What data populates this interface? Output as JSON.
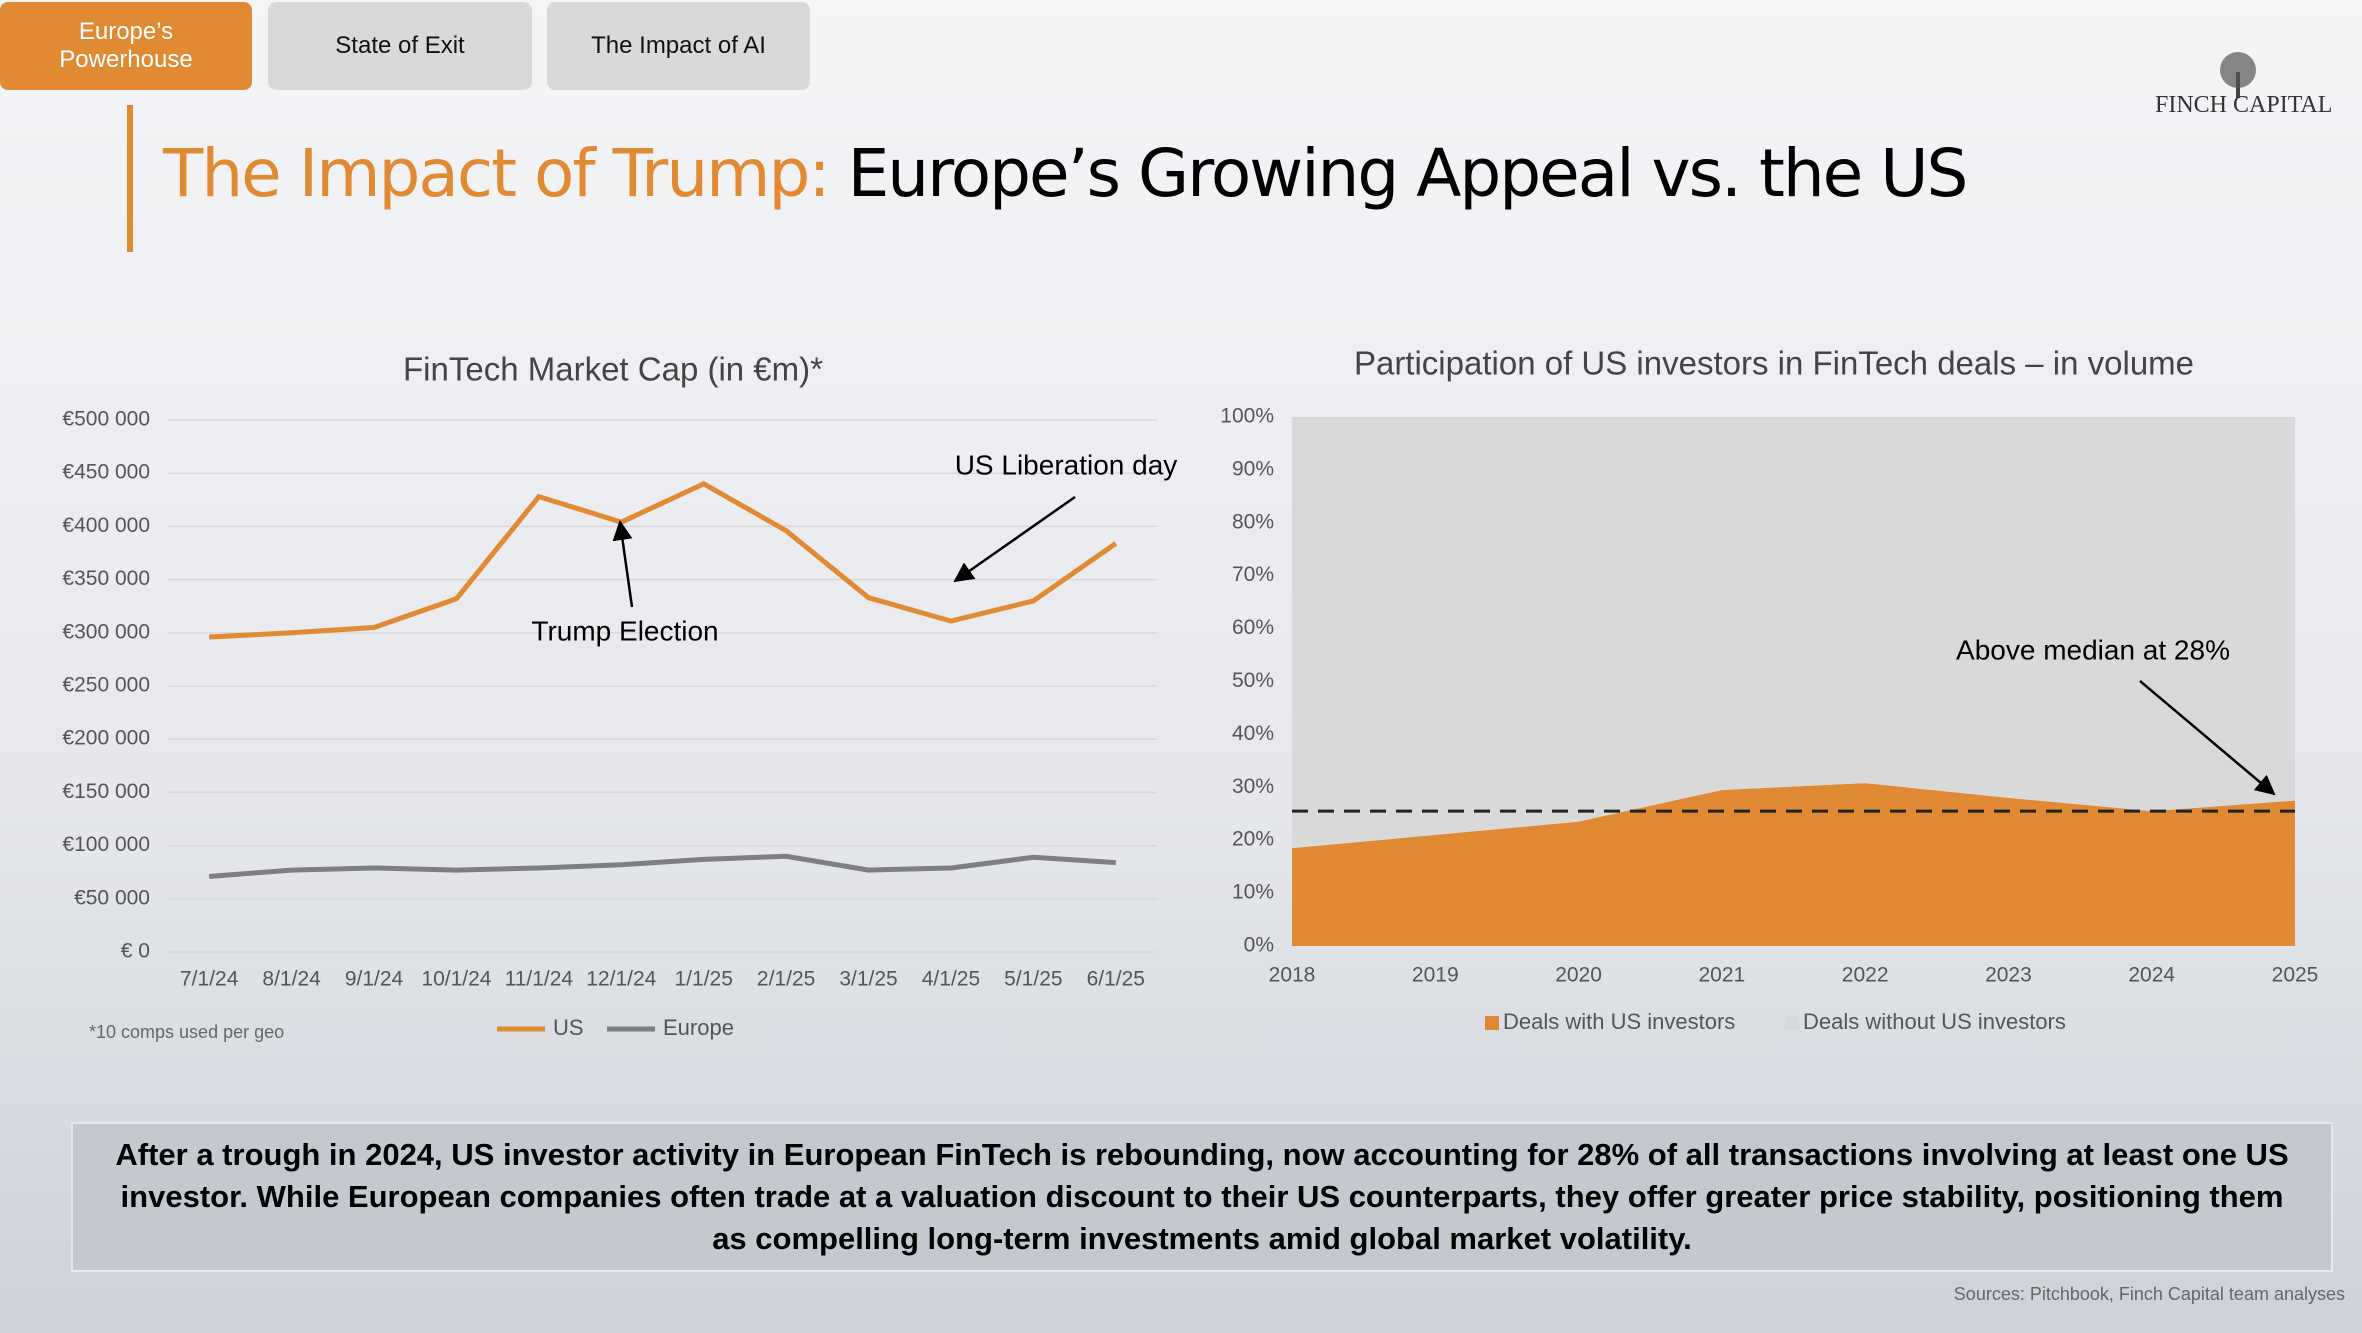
{
  "tabs": [
    "Europe’s Powerhouse",
    "State of Exit",
    "The Impact of AI"
  ],
  "logo": "FINCH CAPITAL",
  "title": {
    "highlight": "The Impact of Trump:",
    "main": "Europe’s Growing Appeal vs. the US"
  },
  "chart_data": [
    {
      "type": "line",
      "title": "FinTech Market Cap (in €m)*",
      "categories": [
        "7/1/24",
        "8/1/24",
        "9/1/24",
        "10/1/24",
        "11/1/24",
        "12/1/24",
        "1/1/25",
        "2/1/25",
        "3/1/25",
        "4/1/25",
        "5/1/25",
        "6/1/25"
      ],
      "series": [
        {
          "name": "US",
          "color": "#e08a33",
          "values": [
            296000,
            300000,
            305000,
            332000,
            428000,
            404000,
            440000,
            396000,
            333000,
            311000,
            330000,
            384000
          ]
        },
        {
          "name": "Europe",
          "color": "#7f7f7f",
          "values": [
            71000,
            77000,
            79000,
            77000,
            79000,
            82000,
            87000,
            90000,
            77000,
            79000,
            89000,
            84000
          ]
        }
      ],
      "ylim": [
        0,
        500000
      ],
      "yticks": [
        {
          "value": 0,
          "label": "€ 0"
        },
        {
          "value": 50000,
          "label": "€50 000"
        },
        {
          "value": 100000,
          "label": "€100 000"
        },
        {
          "value": 150000,
          "label": "€150 000"
        },
        {
          "value": 200000,
          "label": "€200 000"
        },
        {
          "value": 250000,
          "label": "€250 000"
        },
        {
          "value": 300000,
          "label": "€300 000"
        },
        {
          "value": 350000,
          "label": "€350 000"
        },
        {
          "value": 400000,
          "label": "€400 000"
        },
        {
          "value": 450000,
          "label": "€450 000"
        },
        {
          "value": 500000,
          "label": "€500 000"
        }
      ],
      "grid": true,
      "annotations": [
        "Trump Election",
        "US Liberation day"
      ],
      "footnote": "*10 comps used per geo"
    },
    {
      "type": "area",
      "title": "Participation of US investors in FinTech deals – in volume",
      "categories": [
        "2018",
        "2019",
        "2020",
        "2021",
        "2022",
        "2023",
        "2024",
        "2025"
      ],
      "series": [
        {
          "name": "Deals with US investors",
          "color": "#e08a33",
          "values": [
            18.5,
            21,
            23.5,
            29.5,
            30.8,
            28,
            25.5,
            27.5
          ]
        },
        {
          "name": "Deals without US investors",
          "color": "#d9d9d9",
          "values": [
            81.5,
            79,
            76.5,
            70.5,
            69.2,
            72,
            74.5,
            72.5
          ]
        }
      ],
      "stacked": true,
      "ylim": [
        0,
        100
      ],
      "yticks": [
        {
          "value": 0,
          "label": "0%"
        },
        {
          "value": 10,
          "label": "10%"
        },
        {
          "value": 20,
          "label": "20%"
        },
        {
          "value": 30,
          "label": "30%"
        },
        {
          "value": 40,
          "label": "40%"
        },
        {
          "value": 50,
          "label": "50%"
        },
        {
          "value": 60,
          "label": "60%"
        },
        {
          "value": 70,
          "label": "70%"
        },
        {
          "value": 80,
          "label": "80%"
        },
        {
          "value": 90,
          "label": "90%"
        },
        {
          "value": 100,
          "label": "100%"
        }
      ],
      "grid": false,
      "median": 25.5,
      "annotations": [
        "Above median at 28%"
      ]
    }
  ],
  "summary": "After a trough in 2024, US investor activity in European FinTech is rebounding, now accounting for 28% of all transactions involving at least one US investor. While European companies often trade at a valuation discount to their US counterparts, they offer greater price stability, positioning them as compelling long-term investments amid global market volatility.",
  "sources": "Sources: Pitchbook, Finch Capital team analyses"
}
